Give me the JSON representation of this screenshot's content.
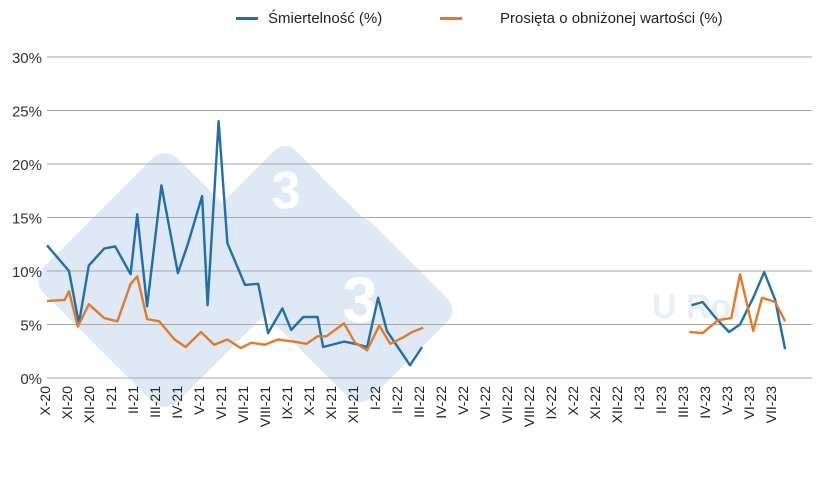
{
  "chart_data": {
    "type": "line",
    "title": "",
    "xlabel": "",
    "ylabel": "",
    "ylim": [
      0,
      30
    ],
    "yticks": [
      "0%",
      "5%",
      "10%",
      "15%",
      "20%",
      "25%",
      "30%"
    ],
    "grid": true,
    "legend_position": "top",
    "categories": [
      "X-20",
      "XI-20",
      "XII-20",
      "I-21",
      "II-21",
      "III-21",
      "IV-21",
      "V-21",
      "VI-21",
      "VII-21",
      "VIII-21",
      "IX-21",
      "X-21",
      "XI-21",
      "XII-21",
      "I-22",
      "II-22",
      "III-22",
      "IV-22",
      "V-22",
      "VI-22",
      "VII-22",
      "VIII-22",
      "IX-22",
      "X-22",
      "XI-22",
      "XII-22",
      "I-23",
      "II-23",
      "III-23",
      "IV-23",
      "V-23",
      "VI-23",
      "VII-23"
    ],
    "series": [
      {
        "name": "Śmiertelność (%)",
        "color": "#1f6fa8",
        "points": [
          [
            0.0,
            12.4
          ],
          [
            1.0,
            10.0
          ],
          [
            1.45,
            5.1
          ],
          [
            1.9,
            10.5
          ],
          [
            2.6,
            12.1
          ],
          [
            3.1,
            12.3
          ],
          [
            3.8,
            9.7
          ],
          [
            4.1,
            15.3
          ],
          [
            4.55,
            6.7
          ],
          [
            5.2,
            18.0
          ],
          [
            5.95,
            9.8
          ],
          [
            6.4,
            12.5
          ],
          [
            7.05,
            17.0
          ],
          [
            7.3,
            6.8
          ],
          [
            7.8,
            24.0
          ],
          [
            8.2,
            12.6
          ],
          [
            9.0,
            8.7
          ],
          [
            9.6,
            8.8
          ],
          [
            10.05,
            4.2
          ],
          [
            10.7,
            6.5
          ],
          [
            11.1,
            4.5
          ],
          [
            11.65,
            5.7
          ],
          [
            12.3,
            5.7
          ],
          [
            12.55,
            2.9
          ],
          [
            13.5,
            3.4
          ],
          [
            14.0,
            3.2
          ],
          [
            14.55,
            2.9
          ],
          [
            15.05,
            7.5
          ],
          [
            15.45,
            4.4
          ],
          [
            16.5,
            1.2
          ],
          [
            17.05,
            2.9
          ],
          null,
          [
            29.3,
            6.8
          ],
          [
            29.8,
            7.1
          ],
          [
            30.4,
            5.6
          ],
          [
            31.0,
            4.3
          ],
          [
            31.5,
            5.0
          ],
          [
            32.1,
            7.5
          ],
          [
            32.6,
            9.9
          ],
          [
            33.1,
            7.3
          ],
          [
            33.55,
            2.7
          ]
        ]
      },
      {
        "name": "Prosięta o obniżonej wartości  (%)",
        "color": "#e07b2a",
        "points": [
          [
            0.0,
            7.2
          ],
          [
            0.8,
            7.3
          ],
          [
            1.0,
            8.1
          ],
          [
            1.4,
            4.8
          ],
          [
            1.9,
            6.9
          ],
          [
            2.6,
            5.6
          ],
          [
            3.2,
            5.3
          ],
          [
            3.8,
            8.8
          ],
          [
            4.1,
            9.5
          ],
          [
            4.55,
            5.5
          ],
          [
            5.1,
            5.3
          ],
          [
            5.8,
            3.6
          ],
          [
            6.3,
            2.9
          ],
          [
            7.0,
            4.3
          ],
          [
            7.6,
            3.1
          ],
          [
            8.2,
            3.6
          ],
          [
            8.8,
            2.8
          ],
          [
            9.3,
            3.3
          ],
          [
            9.9,
            3.1
          ],
          [
            10.5,
            3.6
          ],
          [
            11.2,
            3.4
          ],
          [
            11.8,
            3.2
          ],
          [
            12.3,
            3.9
          ],
          [
            12.7,
            3.9
          ],
          [
            13.5,
            5.1
          ],
          [
            14.0,
            3.3
          ],
          [
            14.55,
            2.6
          ],
          [
            15.1,
            4.9
          ],
          [
            15.6,
            3.2
          ],
          [
            16.2,
            3.8
          ],
          [
            16.6,
            4.3
          ],
          [
            17.1,
            4.7
          ],
          null,
          [
            29.2,
            4.3
          ],
          [
            29.8,
            4.2
          ],
          [
            30.5,
            5.4
          ],
          [
            31.1,
            5.6
          ],
          [
            31.5,
            9.7
          ],
          [
            32.1,
            4.4
          ],
          [
            32.5,
            7.5
          ],
          [
            33.1,
            7.1
          ],
          [
            33.55,
            5.3
          ]
        ]
      }
    ]
  },
  "legend": {
    "item1": "Śmiertelność (%)",
    "item2": "Prosięta o obniżonej wartości  (%)"
  },
  "watermark": {
    "digit": "3",
    "text": "U Rol"
  }
}
